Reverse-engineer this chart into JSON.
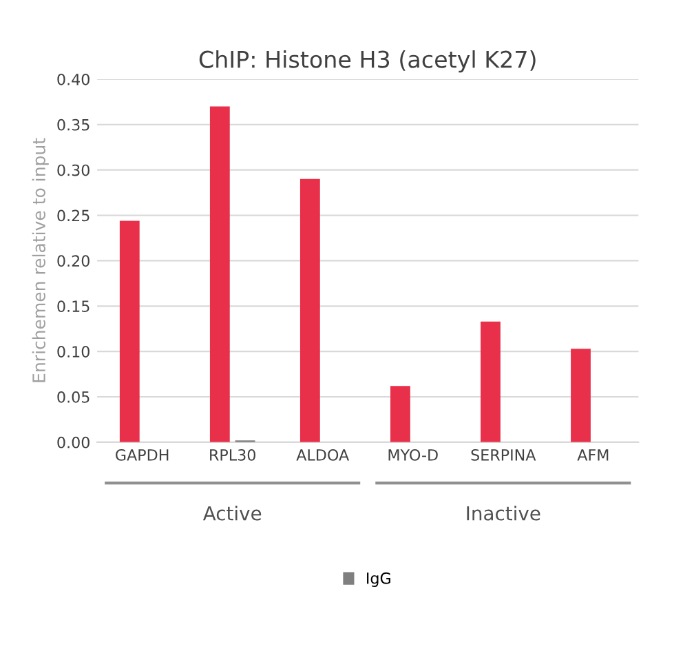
{
  "chart_data": {
    "type": "bar",
    "title": "ChIP: Histone H3 (acetyl K27)",
    "ylabel": "Enrichemen relative to input",
    "categories": [
      "GAPDH",
      "RPL30",
      "ALDOA",
      "MYO-D",
      "SERPINA",
      "AFM"
    ],
    "series": [
      {
        "color": "#e8304a",
        "values": [
          0.244,
          0.37,
          0.29,
          0.062,
          0.133,
          0.103
        ]
      },
      {
        "name": "IgG",
        "color": "#7f7f7f",
        "values": [
          0,
          0.002,
          0,
          0,
          0,
          0
        ]
      }
    ],
    "annotations": [
      "Active",
      "Inactive"
    ],
    "ylim": [
      0,
      0.4
    ],
    "yticks": [
      {
        "value": 0,
        "label": "0.00"
      },
      {
        "value": 0.05,
        "label": "0.05"
      },
      {
        "value": 0.1,
        "label": "0.10"
      },
      {
        "value": 0.15,
        "label": "0.15"
      },
      {
        "value": 0.2,
        "label": "0.20"
      },
      {
        "value": 0.25,
        "label": "0.25"
      },
      {
        "value": 0.3,
        "label": "0.30"
      },
      {
        "value": 0.35,
        "label": "0.35"
      },
      {
        "value": 0.4,
        "label": "0.40"
      }
    ],
    "grid": "y",
    "legend": "bottom"
  }
}
